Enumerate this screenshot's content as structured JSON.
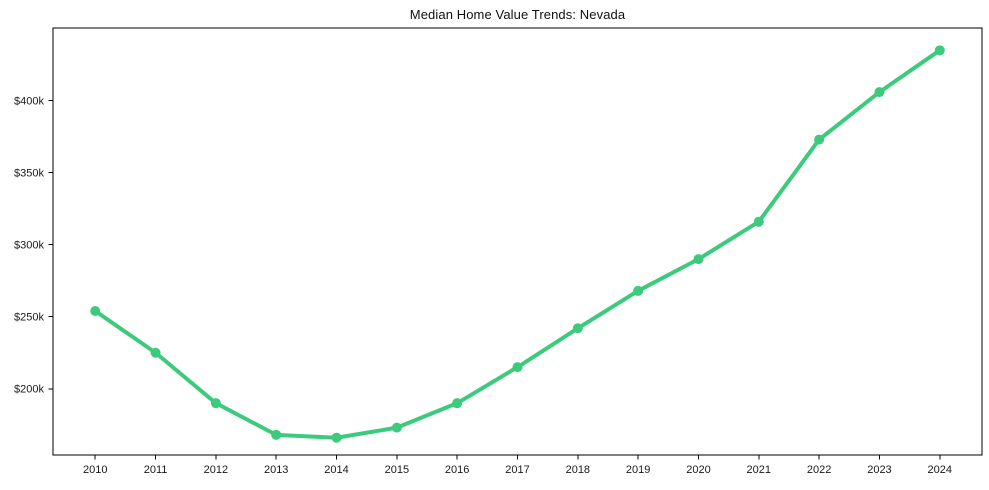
{
  "figure": {
    "background": "#ffffff"
  },
  "chart_data": {
    "type": "line",
    "title": "Median Home Value Trends: Nevada",
    "x": [
      2010,
      2011,
      2012,
      2013,
      2014,
      2015,
      2016,
      2017,
      2018,
      2019,
      2020,
      2021,
      2022,
      2023,
      2024
    ],
    "values": [
      254,
      225,
      190,
      168,
      166,
      173,
      190,
      215,
      242,
      268,
      290,
      316,
      373,
      406,
      435
    ],
    "values_unit_label": "$k",
    "xlabel": "",
    "ylabel": "",
    "xlim": [
      2009.3,
      2024.7
    ],
    "ylim": [
      154,
      450.5
    ],
    "xticks": {
      "values": [
        2010,
        2011,
        2012,
        2013,
        2014,
        2015,
        2016,
        2017,
        2018,
        2019,
        2020,
        2021,
        2022,
        2023,
        2024
      ],
      "labels": [
        "2010",
        "2011",
        "2012",
        "2013",
        "2014",
        "2015",
        "2016",
        "2017",
        "2018",
        "2019",
        "2020",
        "2021",
        "2022",
        "2023",
        "2024"
      ]
    },
    "yticks": {
      "values": [
        200,
        250,
        300,
        350,
        400
      ],
      "labels": [
        "$200k",
        "$250k",
        "$300k",
        "$350k",
        "$400k"
      ]
    },
    "grid": false,
    "legend_position": "none",
    "line_color": "#3ccb7d",
    "line_width": 4,
    "marker": "circle",
    "marker_radius": 5,
    "axis_color": "#000000",
    "tick_label_color": "#1a1a1a"
  }
}
